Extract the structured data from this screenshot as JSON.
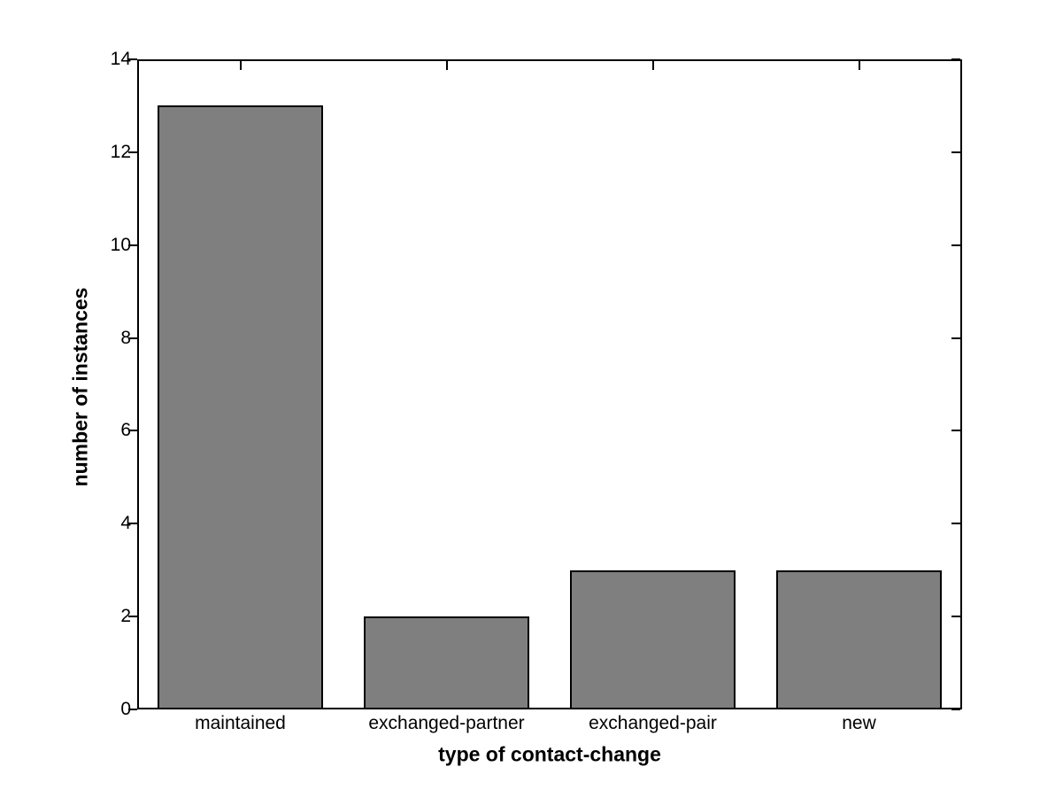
{
  "chart_data": {
    "type": "bar",
    "title": "",
    "xlabel": "type of contact-change",
    "ylabel": "number of instances",
    "categories": [
      "maintained",
      "exchanged-partner",
      "exchanged-pair",
      "new"
    ],
    "values": [
      13,
      2,
      3,
      3
    ],
    "ylim": [
      0,
      14
    ],
    "yticks": [
      0,
      2,
      4,
      6,
      8,
      10,
      12,
      14
    ],
    "grid": false,
    "legend": "none",
    "bar_fill_color": "#7f7f7f",
    "bar_edge_color": "#000000",
    "axis_color": "#000000",
    "text_color": "#000000",
    "background_color": "#ffffff"
  }
}
